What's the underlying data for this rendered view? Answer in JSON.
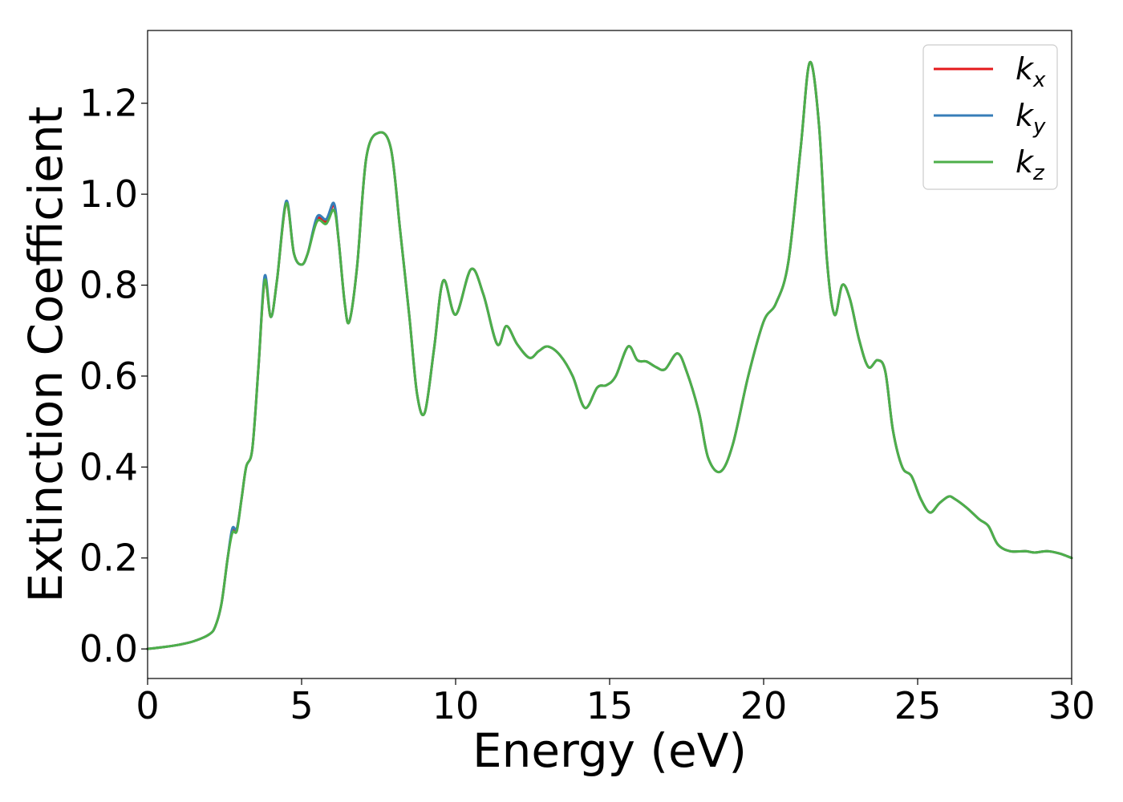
{
  "chart_data": {
    "type": "line",
    "title": "",
    "xlabel": "Energy (eV)",
    "ylabel": "Extinction Coefficient",
    "xlim": [
      0,
      30
    ],
    "ylim": [
      -0.065,
      1.36
    ],
    "xticks": [
      0,
      5,
      10,
      15,
      20,
      25,
      30
    ],
    "xtick_labels": [
      "0",
      "5",
      "10",
      "15",
      "20",
      "25",
      "30"
    ],
    "yticks": [
      0.0,
      0.2,
      0.4,
      0.6,
      0.8,
      1.0,
      1.2
    ],
    "ytick_labels": [
      "0.0",
      "0.2",
      "0.4",
      "0.6",
      "0.8",
      "1.0",
      "1.2"
    ],
    "grid": false,
    "legend_position": "top-right",
    "series": [
      {
        "name": "k_x",
        "legend_base": "k",
        "legend_sub": "x",
        "color": "#e41a1c",
        "x": [
          0,
          0.5,
          1.0,
          1.5,
          2.0,
          2.2,
          2.4,
          2.6,
          2.75,
          2.9,
          3.05,
          3.2,
          3.4,
          3.6,
          3.8,
          4.0,
          4.2,
          4.5,
          4.75,
          5.0,
          5.2,
          5.5,
          5.8,
          6.05,
          6.2,
          6.4,
          6.55,
          6.8,
          7.1,
          7.5,
          7.9,
          8.2,
          8.5,
          8.75,
          9.0,
          9.3,
          9.6,
          10.0,
          10.5,
          10.9,
          11.35,
          11.65,
          12.0,
          12.4,
          12.7,
          13.0,
          13.4,
          13.8,
          14.2,
          14.6,
          14.9,
          15.2,
          15.6,
          15.9,
          16.2,
          16.5,
          16.8,
          17.2,
          17.5,
          17.9,
          18.2,
          18.6,
          19.0,
          19.5,
          20.0,
          20.4,
          20.8,
          21.2,
          21.5,
          21.8,
          22.05,
          22.3,
          22.55,
          22.8,
          23.1,
          23.4,
          23.7,
          23.95,
          24.2,
          24.5,
          24.8,
          25.1,
          25.4,
          25.7,
          26.0,
          26.2,
          26.6,
          27.0,
          27.3,
          27.6,
          28.0,
          28.5,
          28.8,
          29.2,
          29.6,
          30.0
        ],
        "y": [
          0.0,
          0.004,
          0.009,
          0.017,
          0.032,
          0.05,
          0.1,
          0.2,
          0.26,
          0.265,
          0.33,
          0.4,
          0.44,
          0.62,
          0.81,
          0.73,
          0.81,
          0.98,
          0.87,
          0.845,
          0.87,
          0.945,
          0.94,
          0.975,
          0.9,
          0.76,
          0.72,
          0.84,
          1.08,
          1.135,
          1.1,
          0.92,
          0.73,
          0.56,
          0.52,
          0.66,
          0.81,
          0.735,
          0.835,
          0.78,
          0.67,
          0.71,
          0.67,
          0.64,
          0.655,
          0.665,
          0.645,
          0.6,
          0.53,
          0.575,
          0.58,
          0.6,
          0.665,
          0.635,
          0.632,
          0.62,
          0.615,
          0.65,
          0.61,
          0.52,
          0.42,
          0.39,
          0.45,
          0.6,
          0.72,
          0.76,
          0.85,
          1.1,
          1.29,
          1.15,
          0.86,
          0.735,
          0.8,
          0.77,
          0.68,
          0.62,
          0.635,
          0.61,
          0.48,
          0.4,
          0.38,
          0.33,
          0.3,
          0.32,
          0.335,
          0.33,
          0.31,
          0.285,
          0.27,
          0.23,
          0.215,
          0.215,
          0.212,
          0.215,
          0.21,
          0.2
        ]
      },
      {
        "name": "k_y",
        "legend_base": "k",
        "legend_sub": "y",
        "color": "#377eb8",
        "x": [
          0,
          0.5,
          1.0,
          1.5,
          2.0,
          2.2,
          2.4,
          2.6,
          2.75,
          2.9,
          3.05,
          3.2,
          3.4,
          3.6,
          3.8,
          4.0,
          4.2,
          4.5,
          4.75,
          5.0,
          5.2,
          5.5,
          5.8,
          6.05,
          6.2,
          6.4,
          6.55,
          6.8,
          7.1,
          7.5,
          7.9,
          8.2,
          8.5,
          8.75,
          9.0,
          9.3,
          9.6,
          10.0,
          10.5,
          10.9,
          11.35,
          11.65,
          12.0,
          12.4,
          12.7,
          13.0,
          13.4,
          13.8,
          14.2,
          14.6,
          14.9,
          15.2,
          15.6,
          15.9,
          16.2,
          16.5,
          16.8,
          17.2,
          17.5,
          17.9,
          18.2,
          18.6,
          19.0,
          19.5,
          20.0,
          20.4,
          20.8,
          21.2,
          21.5,
          21.8,
          22.05,
          22.3,
          22.55,
          22.8,
          23.1,
          23.4,
          23.7,
          23.95,
          24.2,
          24.5,
          24.8,
          25.1,
          25.4,
          25.7,
          26.0,
          26.2,
          26.6,
          27.0,
          27.3,
          27.6,
          28.0,
          28.5,
          28.8,
          29.2,
          29.6,
          30.0
        ],
        "y": [
          0.0,
          0.004,
          0.009,
          0.017,
          0.032,
          0.05,
          0.1,
          0.2,
          0.265,
          0.265,
          0.33,
          0.4,
          0.44,
          0.62,
          0.82,
          0.73,
          0.81,
          0.985,
          0.87,
          0.845,
          0.87,
          0.95,
          0.945,
          0.98,
          0.9,
          0.76,
          0.72,
          0.84,
          1.08,
          1.135,
          1.1,
          0.92,
          0.73,
          0.56,
          0.52,
          0.66,
          0.81,
          0.735,
          0.835,
          0.78,
          0.67,
          0.71,
          0.67,
          0.64,
          0.655,
          0.665,
          0.645,
          0.6,
          0.53,
          0.575,
          0.58,
          0.6,
          0.665,
          0.635,
          0.632,
          0.62,
          0.615,
          0.65,
          0.61,
          0.52,
          0.42,
          0.39,
          0.45,
          0.6,
          0.72,
          0.76,
          0.85,
          1.1,
          1.29,
          1.15,
          0.86,
          0.735,
          0.8,
          0.77,
          0.68,
          0.62,
          0.635,
          0.61,
          0.48,
          0.4,
          0.38,
          0.33,
          0.3,
          0.32,
          0.335,
          0.33,
          0.31,
          0.285,
          0.27,
          0.23,
          0.215,
          0.215,
          0.212,
          0.215,
          0.21,
          0.2
        ]
      },
      {
        "name": "k_z",
        "legend_base": "k",
        "legend_sub": "z",
        "color": "#4daf4a",
        "x": [
          0,
          0.5,
          1.0,
          1.5,
          2.0,
          2.2,
          2.4,
          2.6,
          2.75,
          2.9,
          3.05,
          3.2,
          3.4,
          3.6,
          3.8,
          4.0,
          4.2,
          4.5,
          4.75,
          5.0,
          5.2,
          5.5,
          5.8,
          6.05,
          6.2,
          6.4,
          6.55,
          6.8,
          7.1,
          7.5,
          7.9,
          8.2,
          8.5,
          8.75,
          9.0,
          9.3,
          9.6,
          10.0,
          10.5,
          10.9,
          11.35,
          11.65,
          12.0,
          12.4,
          12.7,
          13.0,
          13.4,
          13.8,
          14.2,
          14.6,
          14.9,
          15.2,
          15.6,
          15.9,
          16.2,
          16.5,
          16.8,
          17.2,
          17.5,
          17.9,
          18.2,
          18.6,
          19.0,
          19.5,
          20.0,
          20.4,
          20.8,
          21.2,
          21.5,
          21.8,
          22.05,
          22.3,
          22.55,
          22.8,
          23.1,
          23.4,
          23.7,
          23.95,
          24.2,
          24.5,
          24.8,
          25.1,
          25.4,
          25.7,
          26.0,
          26.2,
          26.6,
          27.0,
          27.3,
          27.6,
          28.0,
          28.5,
          28.8,
          29.2,
          29.6,
          30.0
        ],
        "y": [
          0.0,
          0.004,
          0.009,
          0.017,
          0.032,
          0.05,
          0.1,
          0.2,
          0.255,
          0.26,
          0.33,
          0.4,
          0.44,
          0.62,
          0.81,
          0.73,
          0.81,
          0.98,
          0.87,
          0.845,
          0.87,
          0.94,
          0.935,
          0.965,
          0.9,
          0.76,
          0.72,
          0.84,
          1.08,
          1.135,
          1.1,
          0.92,
          0.73,
          0.56,
          0.52,
          0.66,
          0.81,
          0.735,
          0.835,
          0.78,
          0.67,
          0.71,
          0.67,
          0.64,
          0.655,
          0.665,
          0.645,
          0.6,
          0.53,
          0.575,
          0.58,
          0.6,
          0.665,
          0.635,
          0.632,
          0.62,
          0.615,
          0.65,
          0.61,
          0.52,
          0.42,
          0.39,
          0.45,
          0.6,
          0.72,
          0.76,
          0.85,
          1.1,
          1.29,
          1.15,
          0.86,
          0.735,
          0.8,
          0.77,
          0.68,
          0.62,
          0.635,
          0.61,
          0.48,
          0.4,
          0.38,
          0.33,
          0.3,
          0.32,
          0.335,
          0.33,
          0.31,
          0.285,
          0.27,
          0.23,
          0.215,
          0.215,
          0.212,
          0.215,
          0.21,
          0.2
        ]
      }
    ]
  }
}
